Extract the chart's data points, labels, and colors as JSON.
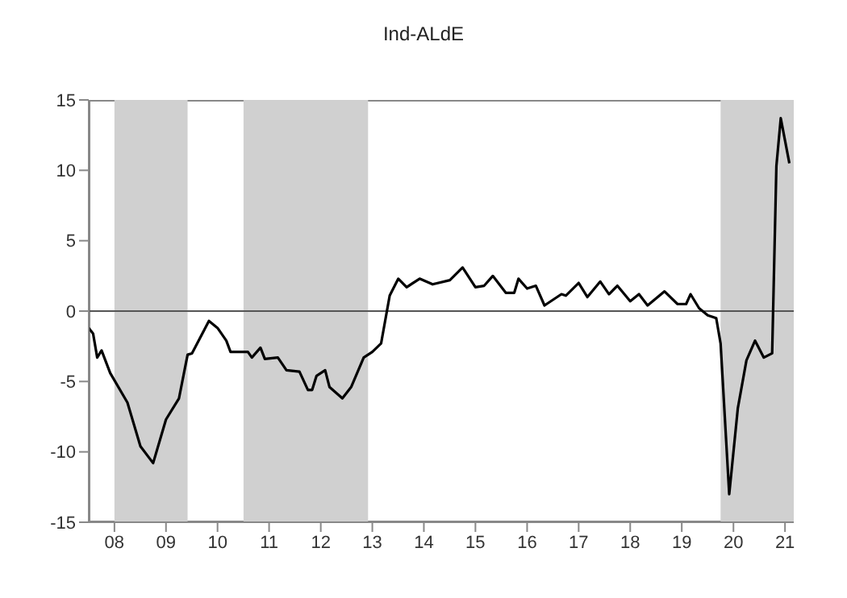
{
  "chart_data": {
    "type": "line",
    "title": "Ind-ALdE",
    "color": "#000000",
    "x": [
      "2008-01",
      "2008-02",
      "2008-03",
      "2008-04",
      "2008-06",
      "2008-10",
      "2009-01",
      "2009-04",
      "2009-07",
      "2009-10",
      "2009-12",
      "2010-01",
      "2010-05",
      "2010-07",
      "2010-09",
      "2010-10",
      "2011-02",
      "2011-03",
      "2011-05",
      "2011-06",
      "2011-09",
      "2011-11",
      "2012-02",
      "2012-04",
      "2012-05",
      "2012-06",
      "2012-08",
      "2012-09",
      "2012-12",
      "2013-02",
      "2013-05",
      "2013-07",
      "2013-09",
      "2013-11",
      "2014-01",
      "2014-03",
      "2014-06",
      "2014-09",
      "2015-01",
      "2015-04",
      "2015-07",
      "2015-09",
      "2015-11",
      "2016-02",
      "2016-04",
      "2016-05",
      "2016-07",
      "2016-09",
      "2016-11",
      "2017-03",
      "2017-04",
      "2017-07",
      "2017-09",
      "2017-12",
      "2018-02",
      "2018-04",
      "2018-07",
      "2018-09",
      "2018-11",
      "2019-03",
      "2019-06",
      "2019-08",
      "2019-09",
      "2019-11",
      "2020-01",
      "2020-03",
      "2020-04",
      "2020-06",
      "2020-08",
      "2020-10",
      "2020-12",
      "2021-02",
      "2021-04",
      "2021-05",
      "2021-06",
      "2021-08"
    ],
    "values": [
      -1.2,
      -1.6,
      -3.3,
      -2.8,
      -4.4,
      -6.5,
      -9.6,
      -10.8,
      -7.7,
      -6.2,
      -3.1,
      -3.0,
      -0.7,
      -1.2,
      -2.1,
      -2.9,
      -2.9,
      -3.3,
      -2.6,
      -3.4,
      -3.3,
      -4.2,
      -4.3,
      -5.6,
      -5.6,
      -4.6,
      -4.2,
      -5.4,
      -6.2,
      -5.4,
      -3.3,
      -2.9,
      -2.3,
      1.1,
      2.3,
      1.7,
      2.3,
      1.9,
      2.2,
      3.1,
      1.7,
      1.8,
      2.5,
      1.3,
      1.3,
      2.3,
      1.6,
      1.8,
      0.4,
      1.2,
      1.1,
      2.0,
      1.0,
      2.1,
      1.2,
      1.8,
      0.7,
      1.2,
      0.4,
      1.4,
      0.5,
      0.5,
      1.2,
      0.2,
      -0.3,
      -0.5,
      -2.3,
      -13.0,
      -6.9,
      -3.5,
      -2.1,
      -3.3,
      -3.0,
      10.3,
      13.7,
      10.5
    ],
    "xlim": [
      "2008-01",
      "2021-09"
    ],
    "xticks": [
      {
        "value": "2008-07",
        "label": "08"
      },
      {
        "value": "2009-07",
        "label": "09"
      },
      {
        "value": "2010-07",
        "label": "10"
      },
      {
        "value": "2011-07",
        "label": "11"
      },
      {
        "value": "2012-07",
        "label": "12"
      },
      {
        "value": "2013-07",
        "label": "13"
      },
      {
        "value": "2014-07",
        "label": "14"
      },
      {
        "value": "2015-07",
        "label": "15"
      },
      {
        "value": "2016-07",
        "label": "16"
      },
      {
        "value": "2017-07",
        "label": "17"
      },
      {
        "value": "2018-07",
        "label": "18"
      },
      {
        "value": "2019-07",
        "label": "19"
      },
      {
        "value": "2020-07",
        "label": "20"
      },
      {
        "value": "2021-07",
        "label": "21"
      }
    ],
    "ylim": [
      -15,
      15
    ],
    "yticks": [
      -15,
      -10,
      -5,
      0,
      5,
      10,
      15
    ],
    "ref_lines": [
      {
        "axis": "y",
        "value": 0,
        "color": "#555555"
      }
    ],
    "bands": [
      {
        "axis": "x",
        "from": "2008-07",
        "to": "2009-12",
        "color": "#d0d0d0"
      },
      {
        "axis": "x",
        "from": "2011-01",
        "to": "2013-06",
        "color": "#d0d0d0"
      },
      {
        "axis": "x",
        "from": "2020-04",
        "to": "2021-09",
        "color": "#d0d0d0"
      }
    ],
    "grid": false,
    "line_style": "solid",
    "marker": "none"
  }
}
